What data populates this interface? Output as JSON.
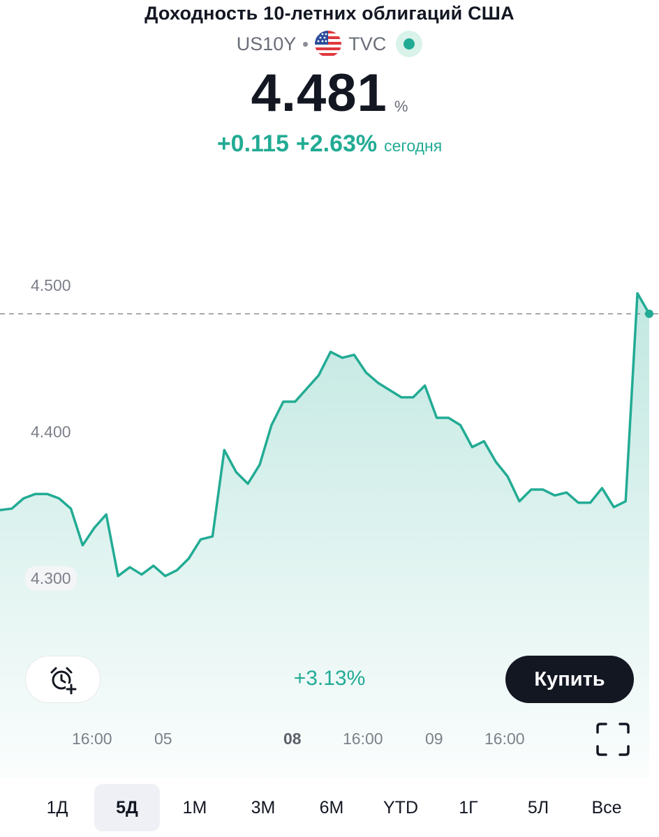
{
  "header": {
    "title": "Доходность 10-летних облигаций США",
    "symbol": "US10Y",
    "exchange": "TVC",
    "flag_icon": "us-flag-icon",
    "status_icon": "market-open-dot-icon"
  },
  "quote": {
    "price": "4.481",
    "unit": "%",
    "change_abs": "+0.115",
    "change_pct": "+2.63%",
    "change_period": "сегодня"
  },
  "colors": {
    "accent_green": "#22ab94",
    "text_primary": "#131722",
    "text_secondary": "#7d808a",
    "button_dark": "#131722"
  },
  "chart_data": {
    "type": "area",
    "x": [
      0,
      1,
      2,
      3,
      4,
      5,
      6,
      7,
      8,
      9,
      10,
      11,
      12,
      13,
      14,
      15,
      16,
      17,
      18,
      19,
      20,
      21,
      22,
      23,
      24,
      25,
      26,
      27,
      28,
      29,
      30,
      31,
      32,
      33,
      34,
      35,
      36,
      37,
      38,
      39,
      40,
      41,
      42,
      43,
      44,
      45,
      46,
      47,
      48,
      49,
      50,
      51,
      52,
      53,
      54,
      55
    ],
    "values": [
      4.347,
      4.348,
      4.355,
      4.358,
      4.358,
      4.355,
      4.348,
      4.323,
      4.335,
      4.344,
      4.302,
      4.308,
      4.303,
      4.309,
      4.302,
      4.306,
      4.314,
      4.327,
      4.329,
      4.388,
      4.373,
      4.365,
      4.378,
      4.405,
      4.421,
      4.421,
      4.43,
      4.439,
      4.455,
      4.451,
      4.453,
      4.441,
      4.434,
      4.429,
      4.424,
      4.424,
      4.432,
      4.41,
      4.41,
      4.405,
      4.39,
      4.394,
      4.38,
      4.37,
      4.353,
      4.361,
      4.361,
      4.357,
      4.359,
      4.352,
      4.352,
      4.362,
      4.349,
      4.353,
      4.495,
      4.481
    ],
    "x_tick_labels": [
      "16:00",
      "05",
      "08",
      "16:00",
      "09",
      "16:00"
    ],
    "x_tick_bold": "08",
    "y_tick_labels": [
      "4.500",
      "4.400",
      "4.300"
    ],
    "ylim": [
      4.24,
      4.52
    ],
    "reference_value": 4.481,
    "grid": false,
    "range_change": "+3.13%"
  },
  "actions": {
    "alarm_icon": "add-alert-clock-icon",
    "buy_label": "Купить",
    "fullscreen_icon": "fullscreen-icon"
  },
  "timeframes": [
    {
      "label": "1Д",
      "active": false
    },
    {
      "label": "5Д",
      "active": true
    },
    {
      "label": "1М",
      "active": false
    },
    {
      "label": "3М",
      "active": false
    },
    {
      "label": "6М",
      "active": false
    },
    {
      "label": "YTD",
      "active": false
    },
    {
      "label": "1Г",
      "active": false
    },
    {
      "label": "5Л",
      "active": false
    },
    {
      "label": "Все",
      "active": false
    }
  ]
}
